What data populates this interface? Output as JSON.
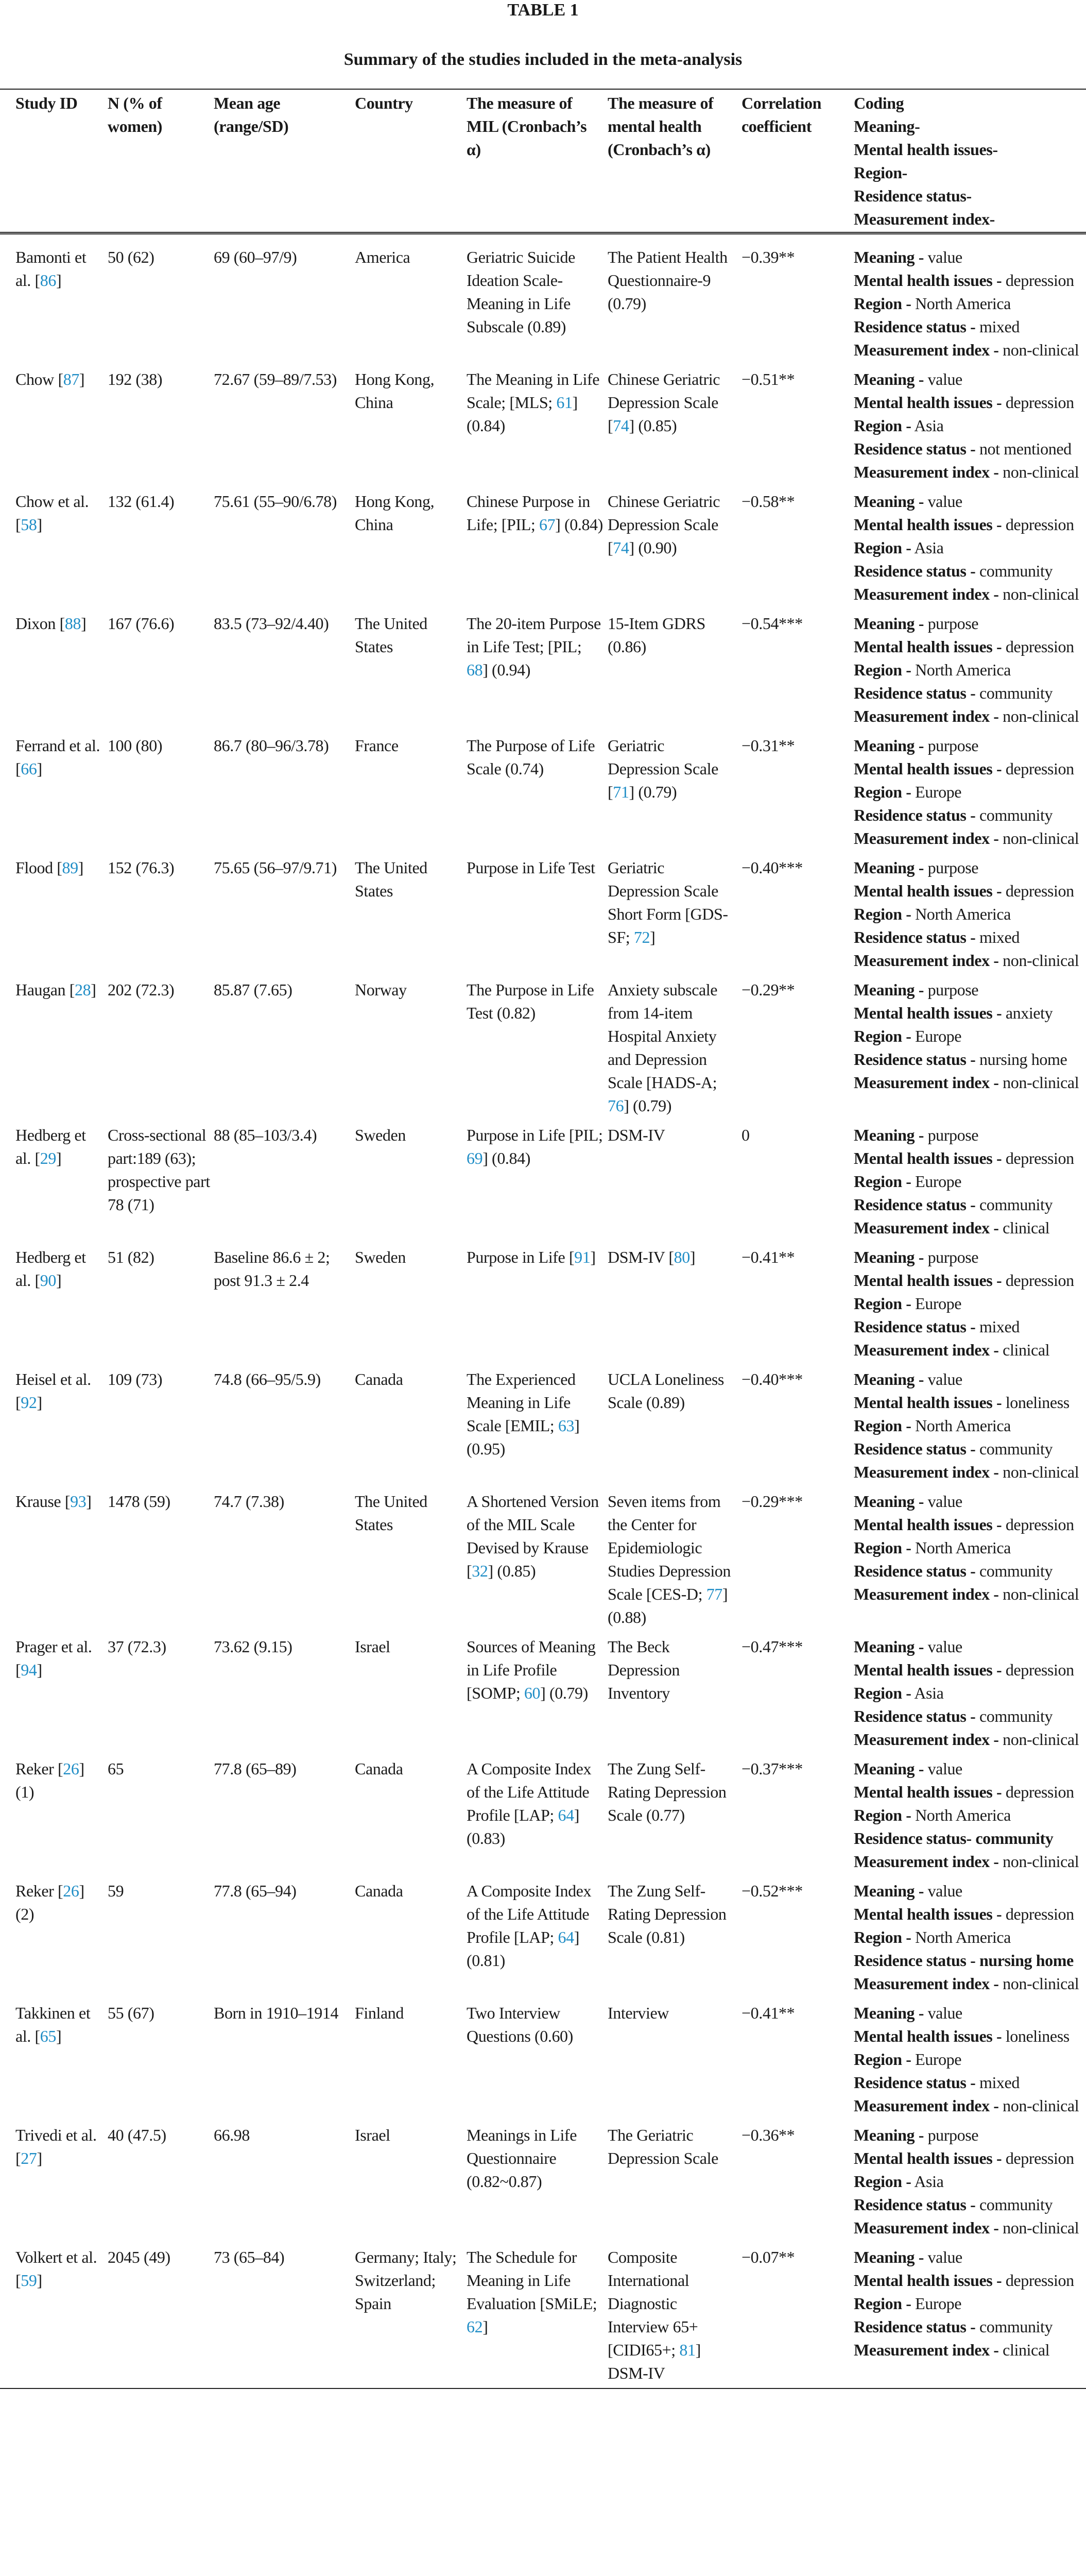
{
  "title": "TABLE 1",
  "subtitle": "Summary of the studies included in the meta-analysis",
  "colors": {
    "reference_link": "#1f8dc6",
    "text": "#1a1a1a"
  },
  "headers": {
    "study_id": "Study ID",
    "n": "N (% of women)",
    "age": "Mean age (range/SD)",
    "country": "Country",
    "mil": "The measure of MIL (Cronbach’s α)",
    "mh": "The measure of mental health (Cronbach’s α)",
    "corr": "Correlation coefficient",
    "coding": [
      "Coding",
      "Meaning-",
      "Mental health issues-",
      "Region-",
      "Residence status-",
      "Measurement index-"
    ]
  },
  "rows": [
    {
      "study_id": [
        "Bamonti et al. [",
        {
          "ref": "86"
        },
        "]"
      ],
      "n": [
        "50 (62)"
      ],
      "age": [
        "69 (60–97/9)"
      ],
      "country": [
        "America"
      ],
      "mil": [
        "Geriatric Suicide Ideation Scale-Meaning in Life Subscale (0.89)"
      ],
      "mh": [
        "The Patient Health Questionnaire-9 (0.79)"
      ],
      "corr": "−0.39**",
      "coding": [
        {
          "label": "Meaning -",
          "value": "value"
        },
        {
          "label": "Mental health issues -",
          "value": "depression"
        },
        {
          "label": "Region -",
          "value": "North America"
        },
        {
          "label": "Residence status -",
          "value": "mixed"
        },
        {
          "label": "Measurement index -",
          "value": "non-clinical"
        }
      ]
    },
    {
      "study_id": [
        "Chow [",
        {
          "ref": "87"
        },
        "]"
      ],
      "n": [
        "192 (38)"
      ],
      "age": [
        "72.67 (59–89/7.53)"
      ],
      "country": [
        "Hong Kong, China"
      ],
      "mil": [
        "The Meaning in Life Scale; [MLS; ",
        {
          "ref": "61"
        },
        "] (0.84)"
      ],
      "mh": [
        "Chinese Geriatric Depression Scale [",
        {
          "ref": "74"
        },
        "] (0.85)"
      ],
      "corr": "−0.51**",
      "coding": [
        {
          "label": "Meaning -",
          "value": "value"
        },
        {
          "label": "Mental health issues -",
          "value": "depression"
        },
        {
          "label": "Region -",
          "value": "Asia"
        },
        {
          "label": "Residence status -",
          "value": "not mentioned"
        },
        {
          "label": "Measurement index -",
          "value": "non-clinical"
        }
      ]
    },
    {
      "study_id": [
        "Chow et al. [",
        {
          "ref": "58"
        },
        "]"
      ],
      "n": [
        "132 (61.4)"
      ],
      "age": [
        "75.61 (55–90/6.78)"
      ],
      "country": [
        "Hong Kong, China"
      ],
      "mil": [
        "Chinese Purpose in Life; [PIL; ",
        {
          "ref": "67"
        },
        "] (0.84)"
      ],
      "mh": [
        "Chinese Geriatric Depression Scale [",
        {
          "ref": "74"
        },
        "] (0.90)"
      ],
      "corr": "−0.58**",
      "coding": [
        {
          "label": "Meaning -",
          "value": "value"
        },
        {
          "label": "Mental health issues -",
          "value": "depression"
        },
        {
          "label": "Region -",
          "value": "Asia"
        },
        {
          "label": "Residence status -",
          "value": "community"
        },
        {
          "label": "Measurement index -",
          "value": "non-clinical"
        }
      ]
    },
    {
      "study_id": [
        "Dixon [",
        {
          "ref": "88"
        },
        "]"
      ],
      "n": [
        "167 (76.6)"
      ],
      "age": [
        "83.5 (73–92/4.40)"
      ],
      "country": [
        "The United States"
      ],
      "mil": [
        "The 20-item Purpose in Life Test; [PIL; ",
        {
          "ref": "68"
        },
        "] (0.94)"
      ],
      "mh": [
        "15-Item GDRS (0.86)"
      ],
      "corr": "−0.54***",
      "coding": [
        {
          "label": "Meaning -",
          "value": "purpose"
        },
        {
          "label": "Mental health issues -",
          "value": "depression"
        },
        {
          "label": "Region -",
          "value": "North America"
        },
        {
          "label": "Residence status -",
          "value": "community"
        },
        {
          "label": "Measurement index -",
          "value": "non-clinical"
        }
      ]
    },
    {
      "study_id": [
        "Ferrand et al. [",
        {
          "ref": "66"
        },
        "]"
      ],
      "n": [
        "100 (80)"
      ],
      "age": [
        "86.7 (80–96/3.78)"
      ],
      "country": [
        "France"
      ],
      "mil": [
        "The Purpose of Life Scale (0.74)"
      ],
      "mh": [
        "Geriatric Depression Scale [",
        {
          "ref": "71"
        },
        "] (0.79)"
      ],
      "corr": "−0.31**",
      "coding": [
        {
          "label": "Meaning -",
          "value": "purpose"
        },
        {
          "label": "Mental health issues -",
          "value": "depression"
        },
        {
          "label": "Region -",
          "value": "Europe"
        },
        {
          "label": "Residence status -",
          "value": "community"
        },
        {
          "label": "Measurement index -",
          "value": "non-clinical"
        }
      ]
    },
    {
      "study_id": [
        "Flood [",
        {
          "ref": "89"
        },
        "]"
      ],
      "n": [
        "152 (76.3)"
      ],
      "age": [
        "75.65 (56–97/9.71)"
      ],
      "country": [
        "The United States"
      ],
      "mil": [
        "Purpose in Life Test"
      ],
      "mh": [
        "Geriatric Depression Scale Short Form [GDS-SF; ",
        {
          "ref": "72"
        },
        "]"
      ],
      "corr": "−0.40***",
      "coding": [
        {
          "label": "Meaning -",
          "value": "purpose"
        },
        {
          "label": "Mental health issues -",
          "value": "depression"
        },
        {
          "label": "Region -",
          "value": "North America"
        },
        {
          "label": "Residence status -",
          "value": "mixed"
        },
        {
          "label": "Measurement index -",
          "value": "non-clinical"
        }
      ]
    },
    {
      "study_id": [
        "Haugan [",
        {
          "ref": "28"
        },
        "]"
      ],
      "n": [
        "202 (72.3)"
      ],
      "age": [
        "85.87 (7.65)"
      ],
      "country": [
        "Norway"
      ],
      "mil": [
        "The Purpose in Life Test (0.82)"
      ],
      "mh": [
        "Anxiety subscale from 14-item Hospital Anxiety and Depression Scale [HADS-A; ",
        {
          "ref": "76"
        },
        "] (0.79)"
      ],
      "corr": "−0.29**",
      "coding": [
        {
          "label": "Meaning -",
          "value": "purpose"
        },
        {
          "label": "Mental health issues -",
          "value": "anxiety"
        },
        {
          "label": "Region -",
          "value": "Europe"
        },
        {
          "label": "Residence status -",
          "value": "nursing home"
        },
        {
          "label": "Measurement index -",
          "value": "non-clinical"
        }
      ]
    },
    {
      "study_id": [
        "Hedberg et al. [",
        {
          "ref": "29"
        },
        "]"
      ],
      "n": [
        "Cross-sectional part:189 (63); prospective part 78 (71)"
      ],
      "age": [
        "88 (85–103/3.4)"
      ],
      "country": [
        "Sweden"
      ],
      "mil": [
        "Purpose in Life [PIL; ",
        {
          "ref": "69"
        },
        "] (0.84)"
      ],
      "mh": [
        "DSM-IV"
      ],
      "corr": "0",
      "coding": [
        {
          "label": "Meaning -",
          "value": "purpose"
        },
        {
          "label": "Mental health issues -",
          "value": "depression"
        },
        {
          "label": "Region -",
          "value": "Europe"
        },
        {
          "label": "Residence status -",
          "value": "community"
        },
        {
          "label": "Measurement index -",
          "value": "clinical"
        }
      ]
    },
    {
      "study_id": [
        "Hedberg et al. [",
        {
          "ref": "90"
        },
        "]"
      ],
      "n": [
        "51 (82)"
      ],
      "age": [
        "Baseline 86.6 ± 2; post 91.3 ± 2.4"
      ],
      "country": [
        "Sweden"
      ],
      "mil": [
        "Purpose in Life [",
        {
          "ref": "91"
        },
        "]"
      ],
      "mh": [
        "DSM-IV [",
        {
          "ref": "80"
        },
        "]"
      ],
      "corr": "−0.41**",
      "coding": [
        {
          "label": "Meaning -",
          "value": "purpose"
        },
        {
          "label": "Mental health issues -",
          "value": "depression"
        },
        {
          "label": "Region -",
          "value": "Europe"
        },
        {
          "label": "Residence status -",
          "value": "mixed"
        },
        {
          "label": "Measurement index -",
          "value": "clinical"
        }
      ]
    },
    {
      "study_id": [
        "Heisel et al. [",
        {
          "ref": "92"
        },
        "]"
      ],
      "n": [
        "109 (73)"
      ],
      "age": [
        "74.8 (66–95/5.9)"
      ],
      "country": [
        "Canada"
      ],
      "mil": [
        "The Experienced Meaning in Life Scale [EMIL; ",
        {
          "ref": "63"
        },
        "] (0.95)"
      ],
      "mh": [
        "UCLA Loneliness Scale (0.89)"
      ],
      "corr": "−0.40***",
      "coding": [
        {
          "label": "Meaning -",
          "value": "value"
        },
        {
          "label": "Mental health issues -",
          "value": "loneliness"
        },
        {
          "label": "Region -",
          "value": "North America"
        },
        {
          "label": "Residence status -",
          "value": "community"
        },
        {
          "label": "Measurement index -",
          "value": "non-clinical"
        }
      ]
    },
    {
      "study_id": [
        "Krause [",
        {
          "ref": "93"
        },
        "]"
      ],
      "n": [
        "1478 (59)"
      ],
      "age": [
        "74.7 (7.38)"
      ],
      "country": [
        "The United States"
      ],
      "mil": [
        "A Shortened Version of the MIL Scale Devised by Krause [",
        {
          "ref": "32"
        },
        "] (0.85)"
      ],
      "mh": [
        "Seven items from the Center for Epidemiologic Studies Depression Scale [CES-D; ",
        {
          "ref": "77"
        },
        "] (0.88)"
      ],
      "corr": "−0.29***",
      "coding": [
        {
          "label": "Meaning -",
          "value": "value"
        },
        {
          "label": "Mental health issues -",
          "value": "depression"
        },
        {
          "label": "Region -",
          "value": "North America"
        },
        {
          "label": "Residence status -",
          "value": "community"
        },
        {
          "label": "Measurement index -",
          "value": "non-clinical"
        }
      ]
    },
    {
      "study_id": [
        "Prager et al. [",
        {
          "ref": "94"
        },
        "]"
      ],
      "n": [
        "37 (72.3)"
      ],
      "age": [
        "73.62 (9.15)"
      ],
      "country": [
        "Israel"
      ],
      "mil": [
        "Sources of Meaning in Life Profile [SOMP; ",
        {
          "ref": "60"
        },
        "] (0.79)"
      ],
      "mh": [
        "The Beck Depression Inventory"
      ],
      "corr": "−0.47***",
      "coding": [
        {
          "label": "Meaning -",
          "value": "value"
        },
        {
          "label": "Mental health issues -",
          "value": "depression"
        },
        {
          "label": "Region -",
          "value": "Asia"
        },
        {
          "label": "Residence status -",
          "value": "community"
        },
        {
          "label": "Measurement index -",
          "value": "non-clinical"
        }
      ]
    },
    {
      "study_id": [
        "Reker [",
        {
          "ref": "26"
        },
        "] (1)"
      ],
      "n": [
        "65"
      ],
      "age": [
        "77.8 (65–89)"
      ],
      "country": [
        "Canada"
      ],
      "mil": [
        "A Composite Index of the Life Attitude Profile [LAP; ",
        {
          "ref": "64"
        },
        "] (0.83)"
      ],
      "mh": [
        "The Zung Self-Rating Depression Scale (0.77)"
      ],
      "corr": "−0.37***",
      "coding": [
        {
          "label": "Meaning -",
          "value": "value"
        },
        {
          "label": "Mental health issues -",
          "value": "depression"
        },
        {
          "label": "Region -",
          "value": "North America"
        },
        {
          "label": "Residence status-",
          "value": "community",
          "bold": true
        },
        {
          "label": "Measurement index -",
          "value": "non-clinical"
        }
      ]
    },
    {
      "study_id": [
        "Reker [",
        {
          "ref": "26"
        },
        "] (2)"
      ],
      "n": [
        "59"
      ],
      "age": [
        "77.8 (65–94)"
      ],
      "country": [
        "Canada"
      ],
      "mil": [
        "A Composite Index of the Life Attitude Profile [LAP; ",
        {
          "ref": "64"
        },
        "] (0.81)"
      ],
      "mh": [
        "The Zung Self-Rating Depression Scale (0.81)"
      ],
      "corr": "−0.52***",
      "coding": [
        {
          "label": "Meaning -",
          "value": "value"
        },
        {
          "label": "Mental health issues -",
          "value": "depression"
        },
        {
          "label": "Region -",
          "value": "North America"
        },
        {
          "label": "Residence status -",
          "value": "nursing home",
          "bold": true
        },
        {
          "label": "Measurement index -",
          "value": "non-clinical"
        }
      ]
    },
    {
      "study_id": [
        "Takkinen et al. [",
        {
          "ref": "65"
        },
        "]"
      ],
      "n": [
        "55 (67)"
      ],
      "age": [
        "Born in 1910–1914"
      ],
      "country": [
        "Finland"
      ],
      "mil": [
        "Two Interview Questions (0.60)"
      ],
      "mh": [
        "Interview"
      ],
      "corr": "−0.41**",
      "coding": [
        {
          "label": "Meaning -",
          "value": "value"
        },
        {
          "label": "Mental health issues -",
          "value": "loneliness"
        },
        {
          "label": "Region -",
          "value": "Europe"
        },
        {
          "label": "Residence status -",
          "value": "mixed"
        },
        {
          "label": "Measurement index -",
          "value": "non-clinical"
        }
      ]
    },
    {
      "study_id": [
        "Trivedi et al. [",
        {
          "ref": "27"
        },
        "]"
      ],
      "n": [
        "40 (47.5)"
      ],
      "age": [
        "66.98"
      ],
      "country": [
        "Israel"
      ],
      "mil": [
        "Meanings in Life Questionnaire (0.82~0.87)"
      ],
      "mh": [
        "The Geriatric Depression Scale"
      ],
      "corr": "−0.36**",
      "coding": [
        {
          "label": "Meaning -",
          "value": "purpose"
        },
        {
          "label": "Mental health issues -",
          "value": "depression"
        },
        {
          "label": "Region -",
          "value": "Asia"
        },
        {
          "label": "Residence status -",
          "value": "community"
        },
        {
          "label": "Measurement index -",
          "value": "non-clinical"
        }
      ]
    },
    {
      "study_id": [
        "Volkert et al. [",
        {
          "ref": "59"
        },
        "]"
      ],
      "n": [
        "2045 (49)"
      ],
      "age": [
        "73 (65–84)"
      ],
      "country": [
        "Germany; Italy; Switzerland; Spain"
      ],
      "mil": [
        "The Schedule for Meaning in Life Evaluation [SMiLE; ",
        {
          "ref": "62"
        },
        "]"
      ],
      "mh": [
        "Composite International Diagnostic Interview 65+ [CIDI65+; ",
        {
          "ref": "81"
        },
        "] DSM-IV"
      ],
      "corr": "−0.07**",
      "coding": [
        {
          "label": "Meaning -",
          "value": "value"
        },
        {
          "label": "Mental health issues -",
          "value": "depression"
        },
        {
          "label": "Region -",
          "value": "Europe"
        },
        {
          "label": "Residence status -",
          "value": "community"
        },
        {
          "label": "Measurement index -",
          "value": "clinical"
        }
      ]
    }
  ]
}
